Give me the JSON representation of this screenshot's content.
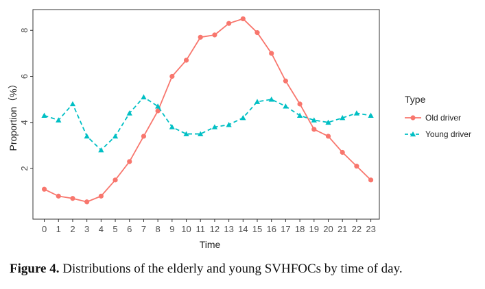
{
  "chart_data": {
    "type": "line",
    "xlabel": "Time",
    "ylabel": "Proportion（%）",
    "x": [
      0,
      1,
      2,
      3,
      4,
      5,
      6,
      7,
      8,
      9,
      10,
      11,
      12,
      13,
      14,
      15,
      16,
      17,
      18,
      19,
      20,
      21,
      22,
      23
    ],
    "x_tick_labels": [
      "0",
      "1",
      "2",
      "3",
      "4",
      "5",
      "6",
      "7",
      "8",
      "9",
      "10",
      "11",
      "12",
      "13",
      "14",
      "15",
      "16",
      "17",
      "18",
      "19",
      "20",
      "21",
      "22",
      "23"
    ],
    "y_ticks": [
      2,
      4,
      6,
      8
    ],
    "xlim": [
      -0.8,
      23.6
    ],
    "ylim": [
      -0.2,
      8.9
    ],
    "grid": false,
    "legend": {
      "title": "Type",
      "position": "right"
    },
    "series": [
      {
        "name": "Old driver",
        "color": "#F8766D",
        "line": "solid",
        "marker": "circle",
        "values": [
          1.1,
          0.8,
          0.7,
          0.55,
          0.8,
          1.5,
          2.3,
          3.4,
          4.5,
          6.0,
          6.7,
          7.7,
          7.8,
          8.3,
          8.5,
          7.9,
          7.0,
          5.8,
          4.8,
          3.7,
          3.4,
          2.7,
          2.1,
          1.5
        ]
      },
      {
        "name": "Young driver",
        "color": "#00BFC4",
        "line": "dashed",
        "marker": "triangle",
        "values": [
          4.3,
          4.1,
          4.8,
          3.4,
          2.8,
          3.4,
          4.4,
          5.1,
          4.7,
          3.8,
          3.5,
          3.5,
          3.8,
          3.9,
          4.2,
          4.9,
          5.0,
          4.7,
          4.3,
          4.1,
          4.0,
          4.2,
          4.4,
          4.3
        ]
      }
    ]
  },
  "caption": {
    "label": "Figure 4.",
    "text": " Distributions of the elderly and young SVHFOCs by time of day."
  }
}
